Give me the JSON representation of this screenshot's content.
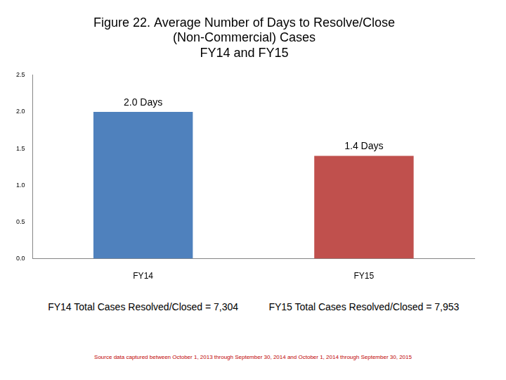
{
  "chart_data": {
    "type": "bar",
    "title": [
      "Figure 22. Average Number of Days to Resolve/Close",
      "(Non-Commercial) Cases",
      "FY14 and FY15"
    ],
    "categories": [
      "FY14",
      "FY15"
    ],
    "values": [
      2.0,
      1.4
    ],
    "value_labels": [
      "2.0 Days",
      "1.4 Days"
    ],
    "data_labels": true,
    "colors": [
      "#4f81bd",
      "#c0504d"
    ],
    "ylim": [
      0,
      2.5
    ],
    "yticks": [
      {
        "value": 0,
        "label": "0.0"
      },
      0.5,
      {
        "value": 1,
        "label": "1.0"
      },
      1.5,
      {
        "value": 2,
        "label": "2.0"
      },
      2.5
    ],
    "grid": false,
    "annotations": [
      "FY14 Total Cases Resolved/Closed = 7,304",
      "FY15 Total Cases Resolved/Closed = 7,953"
    ],
    "source": "Source data captured between October 1, 2013 through September 30, 2014 and October 1, 2014 through September 30, 2015"
  }
}
